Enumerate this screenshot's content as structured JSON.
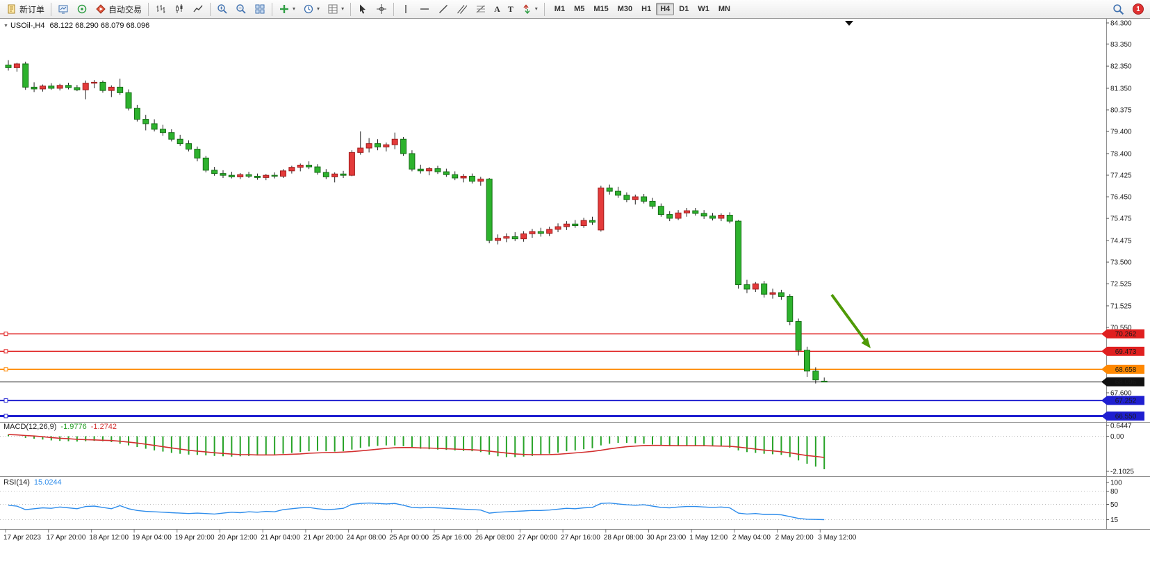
{
  "toolbar": {
    "new_order": "新订单",
    "auto_trading": "自动交易",
    "timeframes": [
      "M1",
      "M5",
      "M15",
      "M30",
      "H1",
      "H4",
      "D1",
      "W1",
      "MN"
    ],
    "active_timeframe": "H4",
    "badge_count": "1"
  },
  "icons": {
    "dropdown": "▾",
    "collapse": "▼",
    "text_tool": "A",
    "label_tool": "T"
  },
  "chart": {
    "title": "USOil-,H4",
    "ohlc": "68.122 68.290 68.079 68.096",
    "price_axis": [
      "84.300",
      "83.350",
      "82.350",
      "81.350",
      "80.375",
      "79.400",
      "78.400",
      "77.425",
      "76.450",
      "75.475",
      "74.475",
      "73.500",
      "72.525",
      "71.525",
      "70.550",
      "67.600"
    ],
    "levels": [
      {
        "label": "70.262",
        "price": 70.262,
        "color": "#e02020",
        "width": 1.5
      },
      {
        "label": "69.473",
        "price": 69.473,
        "color": "#e02020",
        "width": 1.5
      },
      {
        "label": "68.658",
        "price": 68.658,
        "color": "#ff8800",
        "width": 1.5
      },
      {
        "label": "67.252",
        "price": 67.252,
        "color": "#1f1fd0",
        "width": 2
      },
      {
        "label": "66.550",
        "price": 66.55,
        "color": "#1f1fd0",
        "width": 3
      }
    ],
    "current_price": {
      "label": "68.096",
      "price": 68.096,
      "color": "#111111"
    },
    "annotation_arrow": {
      "color": "#4e9a06"
    }
  },
  "macd": {
    "name": "MACD(12,26,9)",
    "main_value": "-1.9776",
    "signal_value": "-1.2742",
    "axis": [
      "0.6447",
      "0.00",
      "-2.1025"
    ]
  },
  "rsi": {
    "name": "RSI(14)",
    "value": "15.0244",
    "axis": [
      "100",
      "80",
      "50",
      "15"
    ],
    "levels": [
      80,
      50,
      15
    ]
  },
  "time_axis": [
    "17 Apr 2023",
    "17 Apr 20:00",
    "18 Apr 12:00",
    "19 Apr 04:00",
    "19 Apr 20:00",
    "20 Apr 12:00",
    "21 Apr 04:00",
    "21 Apr 20:00",
    "24 Apr 08:00",
    "25 Apr 00:00",
    "25 Apr 16:00",
    "26 Apr 08:00",
    "27 Apr 00:00",
    "27 Apr 16:00",
    "28 Apr 08:00",
    "30 Apr 23:00",
    "1 May 12:00",
    "2 May 04:00",
    "2 May 20:00",
    "3 May 12:00"
  ],
  "chart_data": {
    "type": "candlestick",
    "symbol": "USOil",
    "timeframe": "H4",
    "current_ohlc": {
      "open": 68.122,
      "high": 68.29,
      "low": 68.079,
      "close": 68.096
    },
    "colors": {
      "up": "#e43b3b",
      "down": "#2db22d",
      "wick": "#222222",
      "macd_hist": "#27a327",
      "macd_signal": "#d32f2f",
      "rsi_line": "#2d8ceb"
    },
    "candles": [
      [
        82.4,
        82.62,
        82.15,
        82.28
      ],
      [
        82.28,
        82.5,
        82.1,
        82.45
      ],
      [
        82.45,
        82.55,
        81.28,
        81.4
      ],
      [
        81.4,
        81.62,
        81.18,
        81.32
      ],
      [
        81.32,
        81.52,
        81.2,
        81.45
      ],
      [
        81.45,
        81.58,
        81.28,
        81.35
      ],
      [
        81.35,
        81.55,
        81.25,
        81.48
      ],
      [
        81.48,
        81.6,
        81.3,
        81.38
      ],
      [
        81.38,
        81.5,
        81.22,
        81.28
      ],
      [
        81.28,
        81.7,
        80.85,
        81.58
      ],
      [
        81.58,
        81.72,
        81.35,
        81.62
      ],
      [
        81.62,
        81.7,
        81.15,
        81.25
      ],
      [
        81.25,
        81.48,
        80.95,
        81.4
      ],
      [
        81.4,
        81.78,
        81.05,
        81.15
      ],
      [
        81.15,
        81.3,
        80.35,
        80.45
      ],
      [
        80.45,
        80.6,
        79.85,
        79.95
      ],
      [
        79.95,
        80.15,
        79.45,
        79.75
      ],
      [
        79.75,
        79.95,
        79.4,
        79.5
      ],
      [
        79.5,
        79.7,
        79.2,
        79.35
      ],
      [
        79.35,
        79.5,
        78.95,
        79.05
      ],
      [
        79.05,
        79.25,
        78.75,
        78.85
      ],
      [
        78.85,
        79.0,
        78.5,
        78.6
      ],
      [
        78.6,
        78.72,
        78.05,
        78.2
      ],
      [
        78.2,
        78.3,
        77.55,
        77.65
      ],
      [
        77.65,
        77.8,
        77.4,
        77.5
      ],
      [
        77.5,
        77.65,
        77.3,
        77.42
      ],
      [
        77.42,
        77.58,
        77.28,
        77.35
      ],
      [
        77.35,
        77.52,
        77.25,
        77.45
      ],
      [
        77.45,
        77.58,
        77.3,
        77.38
      ],
      [
        77.38,
        77.5,
        77.22,
        77.32
      ],
      [
        77.32,
        77.48,
        77.2,
        77.42
      ],
      [
        77.42,
        77.55,
        77.28,
        77.38
      ],
      [
        77.38,
        77.7,
        77.3,
        77.62
      ],
      [
        77.62,
        77.85,
        77.5,
        77.78
      ],
      [
        77.78,
        77.95,
        77.6,
        77.88
      ],
      [
        77.88,
        78.05,
        77.7,
        77.8
      ],
      [
        77.8,
        77.92,
        77.45,
        77.55
      ],
      [
        77.55,
        77.7,
        77.25,
        77.35
      ],
      [
        77.35,
        77.55,
        77.1,
        77.48
      ],
      [
        77.48,
        77.62,
        77.3,
        77.42
      ],
      [
        77.42,
        78.55,
        77.38,
        78.45
      ],
      [
        78.45,
        79.4,
        78.35,
        78.65
      ],
      [
        78.65,
        79.1,
        78.45,
        78.85
      ],
      [
        78.85,
        79.05,
        78.55,
        78.7
      ],
      [
        78.7,
        78.9,
        78.5,
        78.8
      ],
      [
        78.8,
        79.35,
        78.6,
        79.05
      ],
      [
        79.05,
        79.15,
        78.3,
        78.4
      ],
      [
        78.4,
        78.55,
        77.6,
        77.7
      ],
      [
        77.7,
        77.9,
        77.5,
        77.62
      ],
      [
        77.62,
        77.8,
        77.42,
        77.72
      ],
      [
        77.72,
        77.85,
        77.48,
        77.58
      ],
      [
        77.58,
        77.72,
        77.35,
        77.45
      ],
      [
        77.45,
        77.6,
        77.2,
        77.3
      ],
      [
        77.3,
        77.48,
        77.1,
        77.38
      ],
      [
        77.38,
        77.5,
        77.05,
        77.15
      ],
      [
        77.15,
        77.35,
        76.95,
        77.25
      ],
      [
        77.25,
        77.3,
        74.35,
        74.48
      ],
      [
        74.48,
        74.75,
        74.3,
        74.58
      ],
      [
        74.58,
        74.8,
        74.4,
        74.65
      ],
      [
        74.65,
        74.85,
        74.45,
        74.55
      ],
      [
        74.55,
        74.9,
        74.42,
        74.78
      ],
      [
        74.78,
        75.0,
        74.6,
        74.88
      ],
      [
        74.88,
        75.05,
        74.65,
        74.8
      ],
      [
        74.8,
        75.1,
        74.68,
        74.98
      ],
      [
        74.98,
        75.25,
        74.85,
        75.1
      ],
      [
        75.1,
        75.35,
        74.95,
        75.22
      ],
      [
        75.22,
        75.4,
        75.05,
        75.15
      ],
      [
        75.15,
        75.5,
        75.05,
        75.38
      ],
      [
        75.38,
        75.55,
        75.18,
        75.3
      ],
      [
        74.95,
        76.95,
        74.88,
        76.85
      ],
      [
        76.85,
        77.0,
        76.55,
        76.7
      ],
      [
        76.7,
        76.9,
        76.4,
        76.52
      ],
      [
        76.52,
        76.65,
        76.2,
        76.32
      ],
      [
        76.32,
        76.55,
        76.1,
        76.45
      ],
      [
        76.45,
        76.58,
        76.15,
        76.25
      ],
      [
        76.25,
        76.4,
        75.9,
        76.02
      ],
      [
        76.02,
        76.15,
        75.55,
        75.65
      ],
      [
        75.65,
        75.8,
        75.35,
        75.48
      ],
      [
        75.48,
        75.85,
        75.4,
        75.72
      ],
      [
        75.72,
        75.95,
        75.55,
        75.82
      ],
      [
        75.82,
        75.95,
        75.6,
        75.7
      ],
      [
        75.7,
        75.85,
        75.45,
        75.58
      ],
      [
        75.58,
        75.72,
        75.38,
        75.48
      ],
      [
        75.48,
        75.7,
        75.35,
        75.62
      ],
      [
        75.62,
        75.75,
        75.25,
        75.35
      ],
      [
        75.35,
        75.4,
        72.3,
        72.48
      ],
      [
        72.48,
        72.7,
        72.1,
        72.28
      ],
      [
        72.28,
        72.6,
        72.15,
        72.52
      ],
      [
        72.52,
        72.65,
        71.9,
        72.05
      ],
      [
        72.05,
        72.3,
        71.85,
        72.12
      ],
      [
        72.12,
        72.25,
        71.8,
        71.95
      ],
      [
        71.95,
        72.05,
        70.65,
        70.82
      ],
      [
        70.82,
        70.95,
        69.28,
        69.52
      ],
      [
        69.52,
        69.68,
        68.32,
        68.58
      ],
      [
        68.58,
        68.75,
        68.02,
        68.18
      ],
      [
        68.122,
        68.29,
        68.079,
        68.096
      ]
    ],
    "macd_main": [
      0.1,
      0.0,
      -0.1,
      -0.15,
      -0.2,
      -0.25,
      -0.28,
      -0.3,
      -0.32,
      -0.3,
      -0.28,
      -0.3,
      -0.35,
      -0.45,
      -0.55,
      -0.65,
      -0.75,
      -0.85,
      -0.92,
      -1.0,
      -1.05,
      -1.1,
      -1.12,
      -1.15,
      -1.18,
      -1.2,
      -1.22,
      -1.2,
      -1.18,
      -1.15,
      -1.12,
      -1.1,
      -1.05,
      -1.0,
      -0.95,
      -0.9,
      -0.88,
      -0.9,
      -0.92,
      -0.9,
      -0.8,
      -0.7,
      -0.62,
      -0.58,
      -0.55,
      -0.55,
      -0.6,
      -0.7,
      -0.75,
      -0.78,
      -0.8,
      -0.82,
      -0.85,
      -0.88,
      -0.9,
      -0.95,
      -1.1,
      -1.2,
      -1.25,
      -1.25,
      -1.22,
      -1.18,
      -1.12,
      -1.05,
      -0.98,
      -0.9,
      -0.85,
      -0.78,
      -0.72,
      -0.55,
      -0.45,
      -0.4,
      -0.4,
      -0.42,
      -0.45,
      -0.5,
      -0.55,
      -0.6,
      -0.6,
      -0.58,
      -0.57,
      -0.58,
      -0.6,
      -0.62,
      -0.68,
      -0.85,
      -0.95,
      -1.0,
      -1.05,
      -1.08,
      -1.12,
      -1.25,
      -1.45,
      -1.65,
      -1.82,
      -1.9776
    ],
    "macd_signal": [
      0.1,
      0.08,
      0.04,
      0.01,
      -0.03,
      -0.08,
      -0.12,
      -0.15,
      -0.19,
      -0.21,
      -0.22,
      -0.24,
      -0.26,
      -0.3,
      -0.35,
      -0.41,
      -0.48,
      -0.55,
      -0.63,
      -0.7,
      -0.77,
      -0.84,
      -0.89,
      -0.94,
      -0.99,
      -1.03,
      -1.07,
      -1.1,
      -1.11,
      -1.12,
      -1.12,
      -1.12,
      -1.1,
      -1.08,
      -1.06,
      -1.02,
      -1.0,
      -0.98,
      -0.97,
      -0.95,
      -0.92,
      -0.88,
      -0.83,
      -0.78,
      -0.73,
      -0.69,
      -0.68,
      -0.68,
      -0.7,
      -0.71,
      -0.73,
      -0.75,
      -0.77,
      -0.79,
      -0.81,
      -0.84,
      -0.89,
      -0.95,
      -1.01,
      -1.06,
      -1.09,
      -1.11,
      -1.11,
      -1.1,
      -1.08,
      -1.04,
      -1.0,
      -0.96,
      -0.91,
      -0.84,
      -0.76,
      -0.69,
      -0.63,
      -0.59,
      -0.56,
      -0.55,
      -0.55,
      -0.56,
      -0.57,
      -0.57,
      -0.57,
      -0.57,
      -0.58,
      -0.59,
      -0.6,
      -0.65,
      -0.71,
      -0.77,
      -0.83,
      -0.88,
      -0.93,
      -0.99,
      -1.08,
      -1.16,
      -1.21,
      -1.2742
    ],
    "rsi": [
      48,
      46,
      38,
      40,
      42,
      41,
      44,
      42,
      40,
      45,
      46,
      43,
      40,
      47,
      40,
      36,
      34,
      33,
      32,
      31,
      30,
      29,
      30,
      29,
      28,
      30,
      32,
      31,
      33,
      32,
      34,
      33,
      38,
      40,
      42,
      43,
      40,
      38,
      39,
      41,
      50,
      52,
      53,
      52,
      51,
      52,
      48,
      43,
      42,
      43,
      42,
      41,
      40,
      39,
      38,
      37,
      30,
      32,
      33,
      34,
      35,
      36,
      36,
      37,
      39,
      41,
      40,
      42,
      43,
      52,
      53,
      51,
      49,
      48,
      49,
      46,
      43,
      42,
      44,
      45,
      45,
      44,
      43,
      44,
      42,
      30,
      28,
      29,
      27,
      27,
      26,
      22,
      18,
      16,
      15.5,
      15.02
    ]
  }
}
